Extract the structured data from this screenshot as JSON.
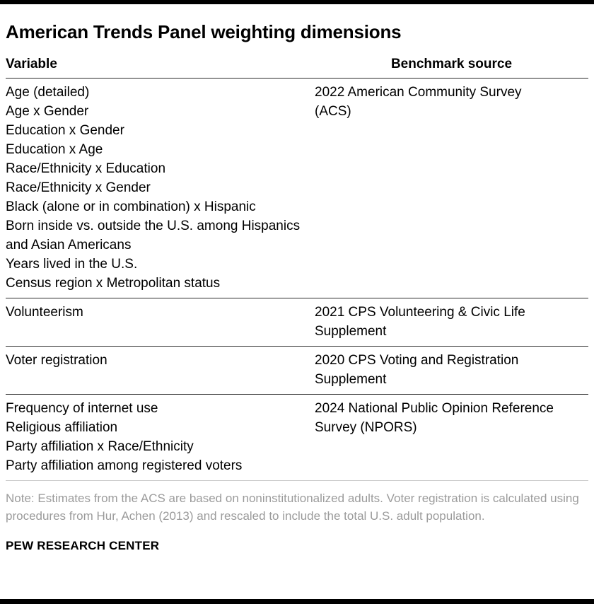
{
  "chart_data": {
    "type": "table",
    "title": "American Trends Panel weighting dimensions",
    "columns": [
      "Variable",
      "Benchmark source"
    ],
    "groups": [
      {
        "variables": [
          "Age (detailed)",
          "Age x Gender",
          "Education x Gender",
          "Education x Age",
          "Race/Ethnicity x Education",
          "Race/Ethnicity x Gender",
          "Black (alone or in combination) x Hispanic",
          "Born inside vs. outside the U.S. among Hispanics and Asian Americans",
          "Years lived in the U.S.",
          "Census region x Metropolitan status"
        ],
        "source": "2022 American Community Survey (ACS)"
      },
      {
        "variables": [
          "Volunteerism"
        ],
        "source": "2021 CPS Volunteering & Civic Life Supplement"
      },
      {
        "variables": [
          "Voter registration"
        ],
        "source": "2020 CPS Voting and Registration Supplement"
      },
      {
        "variables": [
          "Frequency of internet use",
          "Religious affiliation",
          "Party affiliation x Race/Ethnicity",
          "Party affiliation among registered voters"
        ],
        "source": "2024 National Public Opinion Reference Survey (NPORS)"
      }
    ],
    "note": "Note: Estimates from the ACS are based on noninstitutionalized adults. Voter registration is calculated using procedures from Hur, Achen (2013) and rescaled to include the total U.S. adult population.",
    "source_label": "PEW RESEARCH CENTER"
  },
  "colors": {
    "bar": "#000000",
    "text": "#000000",
    "note_text": "#9b9b9b",
    "rule_dark": "#2b2b2b",
    "rule_light": "#c9c9c9"
  }
}
